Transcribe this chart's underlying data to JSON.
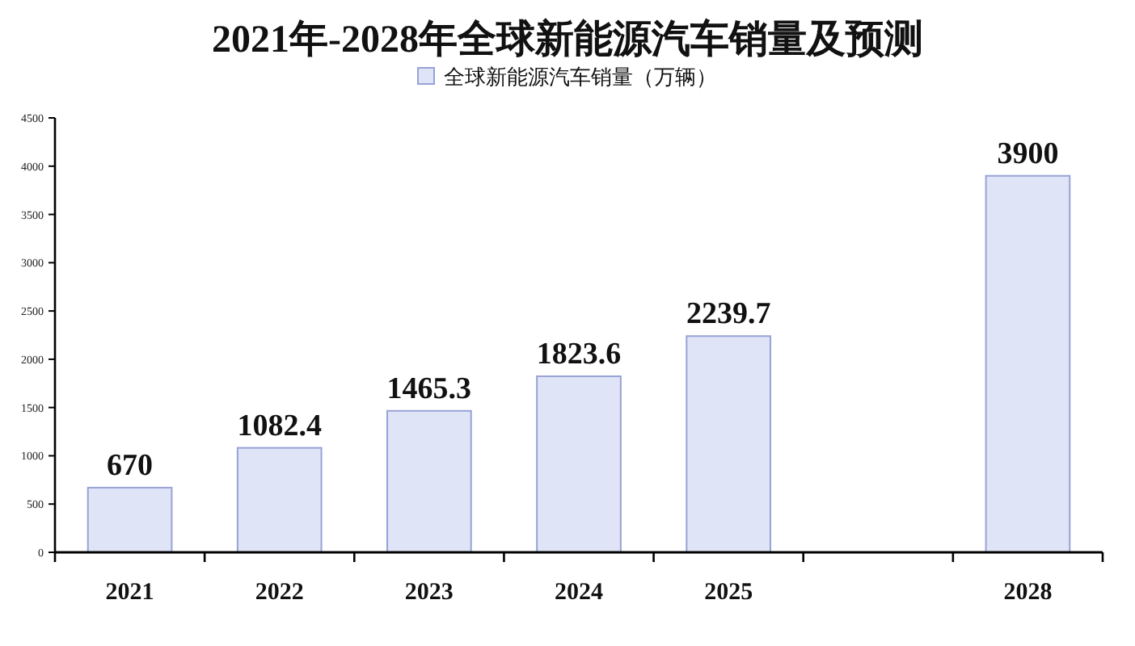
{
  "chart_data": {
    "type": "bar",
    "title": "2021年-2028年全球新能源汽车销量及预测",
    "categories": [
      "2021",
      "2022",
      "2023",
      "2024",
      "2025",
      null,
      "2028"
    ],
    "series": [
      {
        "name": "全球新能源汽车销量（万辆）",
        "color": "#dfe4f6",
        "values": [
          670,
          1082.4,
          1465.3,
          1823.6,
          2239.7,
          null,
          3900
        ]
      }
    ],
    "ylim": [
      0,
      4500
    ],
    "yticks": [
      0,
      500,
      1000,
      1500,
      2000,
      2500,
      3000,
      3500,
      4000,
      4500
    ],
    "data_labels": true,
    "legend": "top"
  }
}
